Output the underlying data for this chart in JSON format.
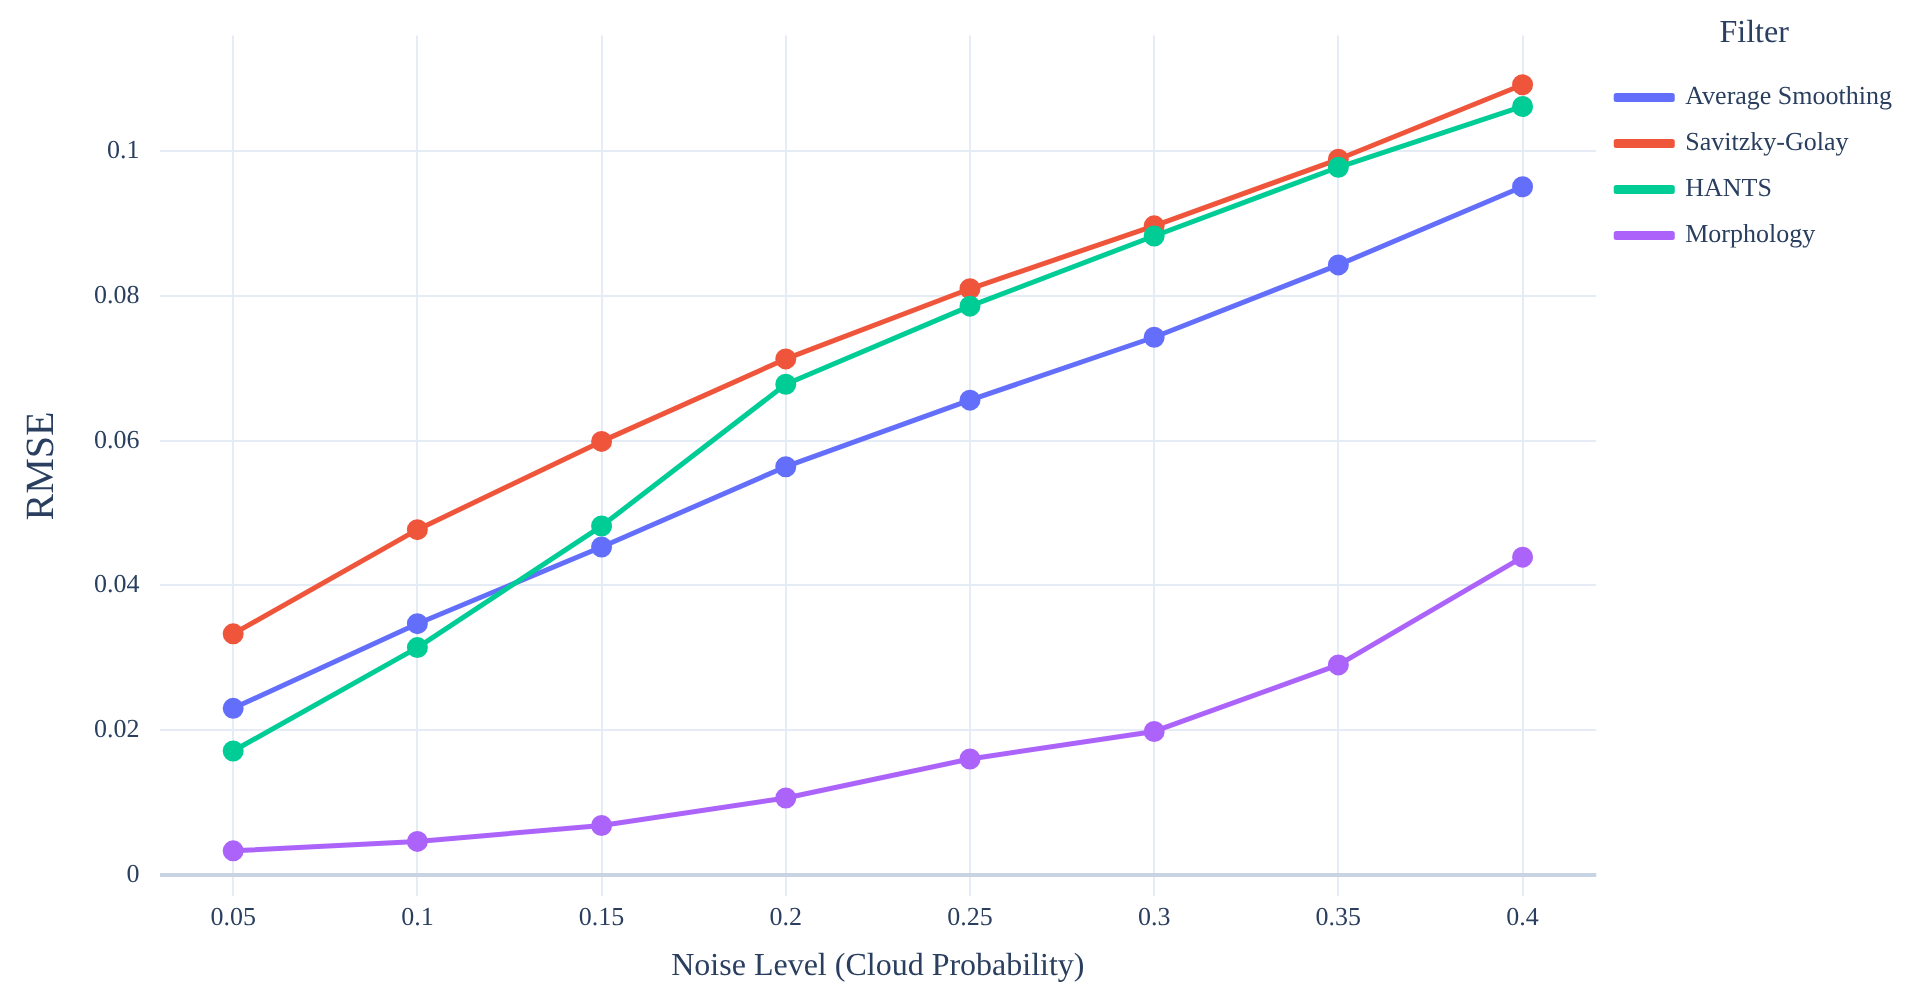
{
  "chart_data": {
    "type": "line",
    "xlabel": "Noise Level (Cloud Probability)",
    "ylabel": "RMSE",
    "legend_title": "Filter",
    "x": [
      0.05,
      0.1,
      0.15,
      0.2,
      0.25,
      0.3,
      0.35,
      0.4
    ],
    "series": [
      {
        "name": "Average Smoothing",
        "color": "#636efa",
        "values": [
          0.023,
          0.0347,
          0.0453,
          0.0564,
          0.0656,
          0.0743,
          0.0843,
          0.0951
        ]
      },
      {
        "name": "Savitzky-Golay",
        "color": "#ef553b",
        "values": [
          0.0333,
          0.0477,
          0.0599,
          0.0713,
          0.081,
          0.0897,
          0.0989,
          0.1092
        ]
      },
      {
        "name": "HANTS",
        "color": "#00cc96",
        "values": [
          0.0171,
          0.0314,
          0.0482,
          0.0678,
          0.0786,
          0.0883,
          0.0978,
          0.1062
        ]
      },
      {
        "name": "Morphology",
        "color": "#ab63fa",
        "values": [
          0.0033,
          0.0046,
          0.0068,
          0.0106,
          0.016,
          0.0198,
          0.029,
          0.0439
        ]
      }
    ],
    "xlim": [
      0.03,
      0.42
    ],
    "xticks": [
      0.05,
      0.1,
      0.15,
      0.2,
      0.25,
      0.3,
      0.35,
      0.4
    ],
    "ylim": [
      -0.003,
      0.116
    ],
    "yticks": [
      0,
      0.02,
      0.04,
      0.06,
      0.08,
      0.1
    ],
    "grid": true,
    "legend": "top right",
    "marker": "circle",
    "line_style": "solid"
  }
}
